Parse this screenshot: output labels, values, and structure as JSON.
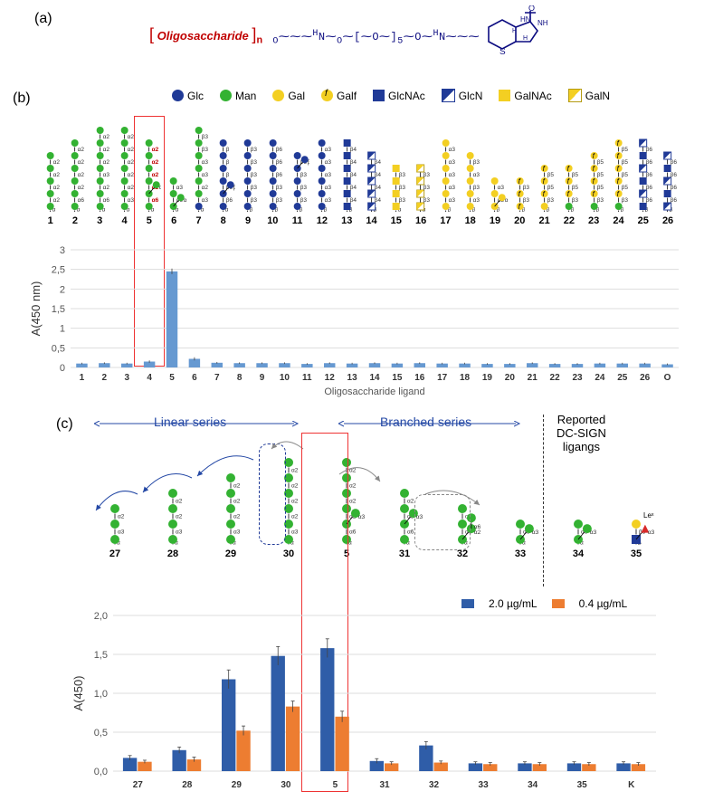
{
  "panel_labels": {
    "a": "(a)",
    "b": "(b)",
    "c": "(c)"
  },
  "chem_text": {
    "olig": "Oligosaccharide",
    "n": "n",
    "linker": "O       N       O       O        N"
  },
  "legend_b_items": [
    {
      "name": "Glc",
      "cls": "circ-blue"
    },
    {
      "name": "Man",
      "cls": "circ-green"
    },
    {
      "name": "Gal",
      "cls": "circ-yellow"
    },
    {
      "name": "Galf",
      "cls": "circ-yellow-f"
    },
    {
      "name": "GlcNAc",
      "cls": "sq-blue"
    },
    {
      "name": "GlcN",
      "cls": "sq-blue-diag"
    },
    {
      "name": "GalNAc",
      "cls": "sq-yellow"
    },
    {
      "name": "GalN",
      "cls": "sq-yellow-diag"
    }
  ],
  "chartA": {
    "title": "",
    "xaxis": "Oligosaccharide ligand",
    "yaxis": "A(450 nm)",
    "yticks": [
      0,
      0.5,
      1,
      1.5,
      2,
      2.5,
      3
    ],
    "ytick_labels": [
      "0",
      "0,5",
      "1",
      "1,5",
      "2",
      "2,5",
      "3"
    ],
    "categories": [
      "1",
      "2",
      "3",
      "4",
      "5",
      "6",
      "7",
      "8",
      "9",
      "10",
      "11",
      "12",
      "13",
      "14",
      "15",
      "16",
      "17",
      "18",
      "19",
      "20",
      "21",
      "22",
      "23",
      "24",
      "25",
      "26",
      "O"
    ],
    "values": [
      0.1,
      0.11,
      0.1,
      0.15,
      2.45,
      0.22,
      0.12,
      0.11,
      0.11,
      0.11,
      0.09,
      0.11,
      0.1,
      0.11,
      0.1,
      0.11,
      0.1,
      0.1,
      0.09,
      0.09,
      0.11,
      0.09,
      0.09,
      0.1,
      0.1,
      0.1,
      0.08
    ],
    "errors": [
      0.02,
      0.02,
      0.02,
      0.03,
      0.07,
      0.04,
      0.02,
      0.02,
      0.02,
      0.02,
      0.02,
      0.02,
      0.02,
      0.02,
      0.02,
      0.02,
      0.02,
      0.02,
      0.02,
      0.02,
      0.02,
      0.02,
      0.02,
      0.02,
      0.02,
      0.02,
      0.02
    ],
    "bar_color": "#6699d1",
    "bg": "#ffffff",
    "y_max": 3
  },
  "chartC": {
    "yaxis": "A(450)",
    "yticks": [
      0,
      0.5,
      1.0,
      1.5,
      2.0
    ],
    "ytick_labels": [
      "0,0",
      "0,5",
      "1,0",
      "1,5",
      "2,0"
    ],
    "categories": [
      "27",
      "28",
      "29",
      "30",
      "5",
      "31",
      "32",
      "33",
      "34",
      "35",
      "K"
    ],
    "series": [
      {
        "name": "2.0 µg/mL",
        "color": "#2f5da8",
        "values": [
          0.17,
          0.27,
          1.18,
          1.48,
          1.58,
          0.13,
          0.33,
          0.1,
          0.1,
          0.1,
          0.1
        ],
        "errors": [
          0.03,
          0.04,
          0.12,
          0.12,
          0.12,
          0.03,
          0.05,
          0.02,
          0.02,
          0.02,
          0.02
        ]
      },
      {
        "name": "0.4 µg/mL",
        "color": "#ed7d31",
        "values": [
          0.12,
          0.15,
          0.52,
          0.83,
          0.7,
          0.1,
          0.11,
          0.09,
          0.09,
          0.09,
          0.09
        ],
        "errors": [
          0.02,
          0.03,
          0.06,
          0.07,
          0.07,
          0.02,
          0.02,
          0.02,
          0.02,
          0.02,
          0.02
        ]
      }
    ],
    "y_max": 2.0,
    "section_labels": {
      "linear": "Linear series",
      "branched": "Branched series",
      "reported": "Reported\nDC-SIGN\nligangs"
    }
  },
  "glycansB": [
    {
      "id": "1",
      "chains": [
        [
          [
            "g",
            "α"
          ],
          [
            "g",
            "α2"
          ],
          [
            "g",
            "α2"
          ],
          [
            "g",
            "α2"
          ],
          [
            "g",
            "α2"
          ]
        ]
      ]
    },
    {
      "id": "2",
      "chains": [
        [
          [
            "g",
            "α"
          ],
          [
            "g",
            "α6"
          ],
          [
            "g",
            "α2"
          ],
          [
            "g",
            "α2"
          ],
          [
            "g",
            "α2"
          ],
          [
            "g",
            "α2"
          ]
        ]
      ]
    },
    {
      "id": "3",
      "chains": [
        [
          [
            "g",
            "α"
          ],
          [
            "g",
            "α6"
          ],
          [
            "g",
            "α2"
          ],
          [
            "g",
            "α3"
          ],
          [
            "g",
            "α2"
          ],
          [
            "g",
            "α2"
          ],
          [
            "g",
            "α2"
          ]
        ]
      ]
    },
    {
      "id": "4",
      "chains": [
        [
          [
            "g",
            "α"
          ],
          [
            "g",
            "α3"
          ],
          [
            "g",
            "α2"
          ],
          [
            "g",
            "α2"
          ],
          [
            "g",
            "α2"
          ],
          [
            "g",
            "α2"
          ],
          [
            "g",
            "α2"
          ]
        ]
      ]
    },
    {
      "id": "5",
      "chains": [
        [
          [
            "g",
            "α"
          ],
          [
            "g",
            "α6"
          ],
          [
            "g",
            "α2"
          ],
          [
            "g",
            "α2"
          ],
          [
            "g",
            "α2"
          ],
          [
            "g",
            "α2"
          ]
        ]
      ],
      "branch": {
        "at": 1,
        "units": [
          [
            "g",
            "α3"
          ]
        ]
      },
      "redlinks": true
    },
    {
      "id": "6",
      "chains": [
        [
          [
            "g",
            "α"
          ],
          [
            "g",
            "α6"
          ],
          [
            "g",
            "α3"
          ]
        ]
      ],
      "branch": {
        "at": 0,
        "units": [
          [
            "g",
            "α2"
          ]
        ]
      }
    },
    {
      "id": "7",
      "chains": [
        [
          [
            "b",
            "α"
          ],
          [
            "g",
            "α3"
          ],
          [
            "g",
            "α2"
          ],
          [
            "g",
            "α3"
          ],
          [
            "g",
            "α3"
          ],
          [
            "g",
            "β3"
          ],
          [
            "g",
            "β3"
          ]
        ]
      ]
    },
    {
      "id": "8",
      "chains": [
        [
          [
            "b",
            "α"
          ],
          [
            "b",
            "β6"
          ],
          [
            "b",
            "β6"
          ],
          [
            "b",
            "β"
          ],
          [
            "b",
            "β"
          ],
          [
            "b",
            "β"
          ]
        ]
      ],
      "branch": {
        "at": 1,
        "units": [
          [
            "b",
            "β6"
          ]
        ]
      }
    },
    {
      "id": "9",
      "chains": [
        [
          [
            "b",
            "β"
          ],
          [
            "b",
            "β3"
          ],
          [
            "b",
            "β3"
          ],
          [
            "b",
            "β3"
          ],
          [
            "b",
            "β3"
          ],
          [
            "b",
            "β3"
          ]
        ]
      ]
    },
    {
      "id": "10",
      "chains": [
        [
          [
            "b",
            "β"
          ],
          [
            "b",
            "β3"
          ],
          [
            "b",
            "β3"
          ],
          [
            "b",
            "β6"
          ],
          [
            "b",
            "β6"
          ],
          [
            "b",
            "β6"
          ]
        ]
      ]
    },
    {
      "id": "11",
      "chains": [
        [
          [
            "b",
            "β"
          ],
          [
            "b",
            "β3"
          ],
          [
            "b",
            "β3"
          ],
          [
            "b",
            "β3"
          ],
          [
            "b",
            "β6"
          ]
        ]
      ],
      "branch": {
        "at": 3,
        "units": [
          [
            "b",
            "β6"
          ]
        ]
      }
    },
    {
      "id": "12",
      "chains": [
        [
          [
            "b",
            "β"
          ],
          [
            "b",
            "α3"
          ],
          [
            "b",
            "α3"
          ],
          [
            "b",
            "α3"
          ],
          [
            "b",
            "α3"
          ],
          [
            "b",
            "α3"
          ]
        ]
      ]
    },
    {
      "id": "13",
      "chains": [
        [
          [
            "sb",
            "β"
          ],
          [
            "sb",
            "β4"
          ],
          [
            "sb",
            "β4"
          ],
          [
            "sb",
            "β4"
          ],
          [
            "sb",
            "β4"
          ],
          [
            "sb",
            "β4"
          ]
        ]
      ]
    },
    {
      "id": "14",
      "chains": [
        [
          [
            "sd",
            "β"
          ],
          [
            "sd",
            "β4"
          ],
          [
            "sd",
            "β4"
          ],
          [
            "sd",
            "β4"
          ],
          [
            "sd",
            "β4"
          ]
        ]
      ]
    },
    {
      "id": "15",
      "chains": [
        [
          [
            "sy",
            "α"
          ],
          [
            "sy",
            "β3"
          ],
          [
            "sy",
            "β3"
          ],
          [
            "sy",
            "β3"
          ]
        ]
      ]
    },
    {
      "id": "16",
      "chains": [
        [
          [
            "syo",
            "α"
          ],
          [
            "syo",
            "β3"
          ],
          [
            "syo",
            "β3"
          ],
          [
            "syo",
            "β3"
          ]
        ]
      ]
    },
    {
      "id": "17",
      "chains": [
        [
          [
            "y",
            "β"
          ],
          [
            "y",
            "α3"
          ],
          [
            "y",
            "α3"
          ],
          [
            "y",
            "α3"
          ],
          [
            "y",
            "α3"
          ],
          [
            "y",
            "α3"
          ]
        ]
      ]
    },
    {
      "id": "18",
      "chains": [
        [
          [
            "y",
            "β"
          ],
          [
            "y",
            "α3"
          ],
          [
            "y",
            "β3"
          ],
          [
            "y",
            "α3"
          ],
          [
            "y",
            "β3"
          ]
        ]
      ]
    },
    {
      "id": "19",
      "chains": [
        [
          [
            "y",
            "β"
          ],
          [
            "y",
            "α3"
          ],
          [
            "y",
            "α3"
          ]
        ]
      ],
      "branch": {
        "at": 0,
        "units": [
          [
            "y",
            "α3"
          ]
        ]
      }
    },
    {
      "id": "20",
      "chains": [
        [
          [
            "yf",
            "β"
          ],
          [
            "yf",
            "β3"
          ],
          [
            "yf",
            "β3"
          ]
        ]
      ]
    },
    {
      "id": "21",
      "chains": [
        [
          [
            "y",
            "β"
          ],
          [
            "yf",
            "β3"
          ],
          [
            "yf",
            "β5"
          ],
          [
            "yf",
            "β5"
          ]
        ]
      ]
    },
    {
      "id": "22",
      "chains": [
        [
          [
            "g",
            "β"
          ],
          [
            "yf",
            "β3"
          ],
          [
            "yf",
            "β5"
          ],
          [
            "yf",
            "β5"
          ]
        ]
      ]
    },
    {
      "id": "23",
      "chains": [
        [
          [
            "g",
            "β"
          ],
          [
            "yf",
            "β3"
          ],
          [
            "yf",
            "β5"
          ],
          [
            "yf",
            "β5"
          ],
          [
            "yf",
            "β5"
          ]
        ]
      ]
    },
    {
      "id": "24",
      "chains": [
        [
          [
            "g",
            "β"
          ],
          [
            "yf",
            "β3"
          ],
          [
            "yf",
            "β5"
          ],
          [
            "yf",
            "β5"
          ],
          [
            "yf",
            "β5"
          ],
          [
            "yf",
            "β5"
          ]
        ]
      ]
    },
    {
      "id": "25",
      "chains": [
        [
          [
            "sb",
            "β"
          ],
          [
            "sd",
            "β6"
          ],
          [
            "sb",
            "β6"
          ],
          [
            "sd",
            "β6"
          ],
          [
            "sb",
            "β6"
          ],
          [
            "sd",
            "β6"
          ]
        ]
      ]
    },
    {
      "id": "26",
      "chains": [
        [
          [
            "sd",
            "β"
          ],
          [
            "sb",
            "β6"
          ],
          [
            "sd",
            "β6"
          ],
          [
            "sb",
            "β6"
          ],
          [
            "sd",
            "β6"
          ]
        ]
      ]
    }
  ],
  "glycansC": [
    {
      "id": "27",
      "chains": [
        [
          [
            "g",
            "α"
          ],
          [
            "g",
            "α3"
          ],
          [
            "g",
            "α2"
          ]
        ]
      ]
    },
    {
      "id": "28",
      "chains": [
        [
          [
            "g",
            "α"
          ],
          [
            "g",
            "α3"
          ],
          [
            "g",
            "α2"
          ],
          [
            "g",
            "α2"
          ]
        ]
      ]
    },
    {
      "id": "29",
      "chains": [
        [
          [
            "g",
            "α"
          ],
          [
            "g",
            "α3"
          ],
          [
            "g",
            "α2"
          ],
          [
            "g",
            "α2"
          ],
          [
            "g",
            "α2"
          ]
        ]
      ]
    },
    {
      "id": "30",
      "chains": [
        [
          [
            "g",
            "α"
          ],
          [
            "g",
            "α3"
          ],
          [
            "g",
            "α2"
          ],
          [
            "g",
            "α2"
          ],
          [
            "g",
            "α2"
          ],
          [
            "g",
            "α2"
          ]
        ]
      ]
    },
    {
      "id": "5",
      "chains": [
        [
          [
            "g",
            "α"
          ],
          [
            "g",
            "α6"
          ],
          [
            "g",
            "α2"
          ],
          [
            "g",
            "α2"
          ],
          [
            "g",
            "α2"
          ],
          [
            "g",
            "α2"
          ]
        ]
      ],
      "branch": {
        "at": 1,
        "units": [
          [
            "g",
            "α3"
          ]
        ]
      }
    },
    {
      "id": "31",
      "chains": [
        [
          [
            "g",
            "α"
          ],
          [
            "g",
            "α6"
          ],
          [
            "g",
            "α3"
          ],
          [
            "g",
            "α2"
          ]
        ]
      ],
      "branch": {
        "at": 1,
        "units": [
          [
            "g",
            "α3"
          ]
        ]
      }
    },
    {
      "id": "32",
      "chains": [
        [
          [
            "g",
            "α"
          ],
          [
            "g",
            "α6"
          ],
          [
            "g",
            "α2"
          ]
        ]
      ],
      "branch": {
        "at": 0,
        "units": [
          [
            "g",
            "α2"
          ],
          [
            "g",
            "α6"
          ]
        ]
      }
    },
    {
      "id": "33",
      "chains": [
        [
          [
            "g",
            "α"
          ],
          [
            "g",
            "α6"
          ]
        ]
      ],
      "branch": {
        "at": 0,
        "units": [
          [
            "g",
            "α3"
          ]
        ]
      }
    },
    {
      "id": "34",
      "chains": [
        [
          [
            "g",
            "α"
          ],
          [
            "g",
            "α6"
          ]
        ]
      ],
      "branch": {
        "at": 0,
        "units": [
          [
            "g",
            "α3"
          ]
        ]
      },
      "extra": "α6"
    },
    {
      "id": "35",
      "chains": [
        [
          [
            "sb",
            "β"
          ],
          [
            "y",
            "β3"
          ]
        ]
      ],
      "branch": {
        "at": 0,
        "units": [
          [
            "tr",
            "α3"
          ]
        ]
      },
      "note": "Leˣ"
    }
  ]
}
